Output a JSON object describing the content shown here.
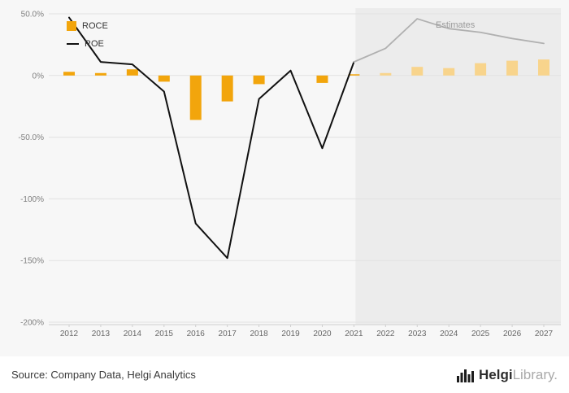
{
  "chart_data": {
    "type": "bar+line",
    "title": "",
    "categories": [
      "2012",
      "2013",
      "2014",
      "2015",
      "2016",
      "2017",
      "2018",
      "2019",
      "2020",
      "2021",
      "2022",
      "2023",
      "2024",
      "2025",
      "2026",
      "2027"
    ],
    "series": [
      {
        "name": "ROCE",
        "type": "bar",
        "values": [
          3,
          2,
          5,
          -5,
          -36,
          -21,
          -7,
          0,
          -6,
          1,
          2,
          7,
          6,
          10,
          12,
          13
        ]
      },
      {
        "name": "ROE",
        "type": "line",
        "values": [
          47,
          11,
          9,
          -13,
          -120,
          -148,
          -19,
          4,
          -59,
          11,
          22,
          46,
          38,
          35,
          30,
          26
        ]
      }
    ],
    "ylim": [
      -200,
      50
    ],
    "y_ticks": [
      {
        "value": 50,
        "label": "50.0%"
      },
      {
        "value": 0,
        "label": "0%"
      },
      {
        "value": -50,
        "label": "-50.0%"
      },
      {
        "value": -100,
        "label": "-100%"
      },
      {
        "value": -150,
        "label": "-150%"
      },
      {
        "value": -200,
        "label": "-200%"
      }
    ],
    "estimate_start_year": "2022",
    "annotations": {
      "estimates_label": "Estimates"
    },
    "legend_position": "top-left",
    "grid": "horizontal",
    "colors": {
      "bar": "#f2a50c",
      "bar_estimate": "#f8d48c",
      "line": "#111111",
      "line_estimate": "#b0b0b0",
      "estimate_bg": "#ececec",
      "background": "#f7f7f7",
      "grid": "#e2e2e2",
      "axis": "#cfcfcf",
      "tick_label": "#808080",
      "x_label": "#666666"
    }
  },
  "footer": {
    "source": "Source: Company Data, Helgi Analytics",
    "brand": {
      "bold": "Helgi",
      "light": "Library",
      "dot": "."
    }
  }
}
